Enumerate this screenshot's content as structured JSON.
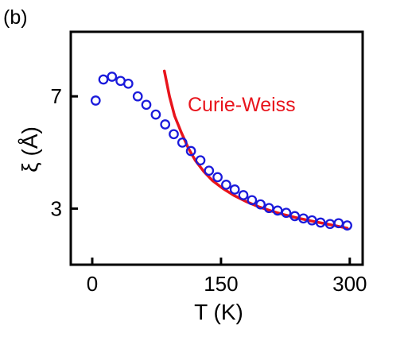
{
  "chart_data": {
    "type": "scatter",
    "panel_label": "(b)",
    "xlabel": "T (K)",
    "ylabel": "ξ (Å)",
    "xlim": [
      -25,
      315
    ],
    "ylim": [
      1.0,
      9.3
    ],
    "xticks": [
      0,
      150,
      300
    ],
    "xtick_labels": [
      "0",
      "150",
      "300"
    ],
    "yticks": [
      3,
      7
    ],
    "ytick_labels": [
      "3",
      "7"
    ],
    "grid": false,
    "series": [
      {
        "kind": "markers",
        "marker": "open-circle",
        "color": "#1a1adb",
        "points": [
          [
            4,
            6.85
          ],
          [
            13,
            7.6
          ],
          [
            23,
            7.7
          ],
          [
            33,
            7.55
          ],
          [
            42,
            7.45
          ],
          [
            53,
            7.0
          ],
          [
            63,
            6.7
          ],
          [
            74,
            6.35
          ],
          [
            85,
            6.0
          ],
          [
            95,
            5.65
          ],
          [
            105,
            5.35
          ],
          [
            115,
            5.05
          ],
          [
            126,
            4.72
          ],
          [
            136,
            4.35
          ],
          [
            146,
            4.12
          ],
          [
            156,
            3.85
          ],
          [
            166,
            3.68
          ],
          [
            176,
            3.48
          ],
          [
            186,
            3.3
          ],
          [
            196,
            3.15
          ],
          [
            206,
            3.02
          ],
          [
            216,
            2.93
          ],
          [
            226,
            2.85
          ],
          [
            236,
            2.73
          ],
          [
            246,
            2.65
          ],
          [
            256,
            2.58
          ],
          [
            266,
            2.5
          ],
          [
            277,
            2.45
          ],
          [
            287,
            2.48
          ],
          [
            297,
            2.4
          ]
        ]
      },
      {
        "kind": "line",
        "color": "#e8141c",
        "points": [
          [
            84,
            7.9
          ],
          [
            90,
            7.0
          ],
          [
            96,
            6.3
          ],
          [
            104,
            5.7
          ],
          [
            112,
            5.15
          ],
          [
            120,
            4.72
          ],
          [
            130,
            4.32
          ],
          [
            140,
            4.0
          ],
          [
            152,
            3.72
          ],
          [
            165,
            3.47
          ],
          [
            180,
            3.24
          ],
          [
            195,
            3.05
          ],
          [
            210,
            2.9
          ],
          [
            225,
            2.77
          ],
          [
            240,
            2.66
          ],
          [
            255,
            2.56
          ],
          [
            270,
            2.47
          ],
          [
            285,
            2.38
          ],
          [
            297,
            2.3
          ]
        ]
      }
    ],
    "annotations": [
      {
        "text": "Curie-Weiss",
        "color": "#e8141c"
      }
    ]
  }
}
